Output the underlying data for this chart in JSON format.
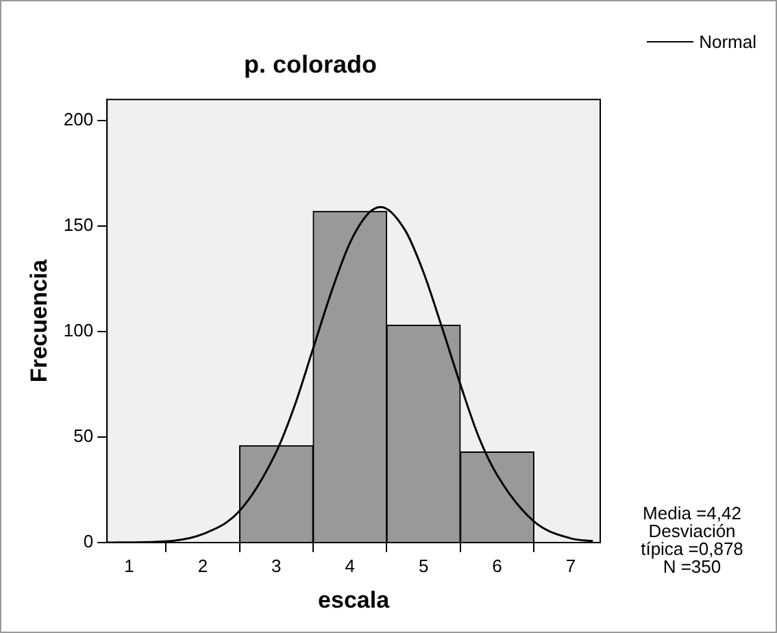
{
  "chart_data": {
    "type": "histogram",
    "title": "p. colorado",
    "xlabel": "escala",
    "ylabel": "Frecuencia",
    "bins": [
      2.5,
      3.5,
      4.5,
      5.5,
      6.5
    ],
    "values": [
      46,
      157,
      103,
      43
    ],
    "color": "#999999",
    "series": [
      {
        "name": "Normal",
        "type": "line",
        "color": "#000000",
        "x": [
          0.7,
          1.5,
          2.0,
          2.5,
          3.0,
          3.25,
          3.5,
          3.75,
          4.0,
          4.25,
          4.42,
          4.75,
          5.0,
          5.25,
          5.5,
          5.75,
          6.0,
          6.5,
          7.0,
          7.3
        ],
        "values": [
          0,
          0.6,
          4,
          15,
          43,
          65,
          92,
          119,
          142,
          156,
          159,
          148,
          128,
          102,
          75,
          50,
          32,
          10,
          2,
          0.7
        ]
      }
    ],
    "xlim": [
      0.7,
      7.4
    ],
    "xticks": [
      1,
      2,
      3,
      4,
      5,
      6,
      7
    ],
    "ylim": [
      0,
      210
    ],
    "yticks": [
      0,
      50,
      100,
      150,
      200
    ],
    "grid": false,
    "legend": "top right",
    "marker": "none",
    "line_style": "solid",
    "annotations": [
      "Media =4,42",
      "Desviación típica =0,878",
      "N =350"
    ]
  }
}
